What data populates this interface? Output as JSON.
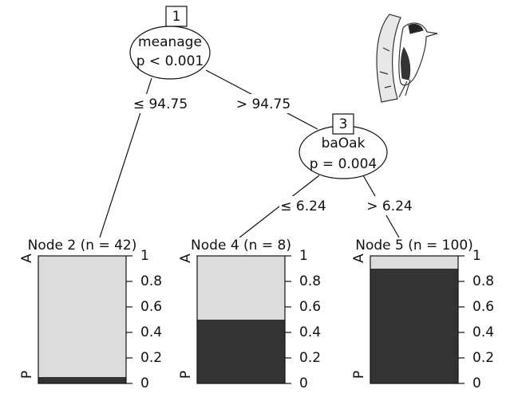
{
  "nodes": [
    {
      "id": "1",
      "variable": "meanage",
      "p": "p < 0.001"
    },
    {
      "id": "3",
      "variable": "baOak",
      "p": "p = 0.004"
    }
  ],
  "edges": [
    "≤ 94.75",
    "> 94.75",
    "≤ 6.24",
    "> 6.24"
  ],
  "class_labels": [
    "A",
    "P"
  ],
  "yticks": [
    0,
    0.2,
    0.4,
    0.6,
    0.8,
    1
  ],
  "leaves": [
    {
      "title": "Node 2 (n = 42)",
      "A": 0.95,
      "P": 0.05
    },
    {
      "title": "Node 4 (n = 8)",
      "A": 0.5,
      "P": 0.5
    },
    {
      "title": "Node 5 (n = 100)",
      "A": 0.1,
      "P": 0.9
    }
  ]
}
